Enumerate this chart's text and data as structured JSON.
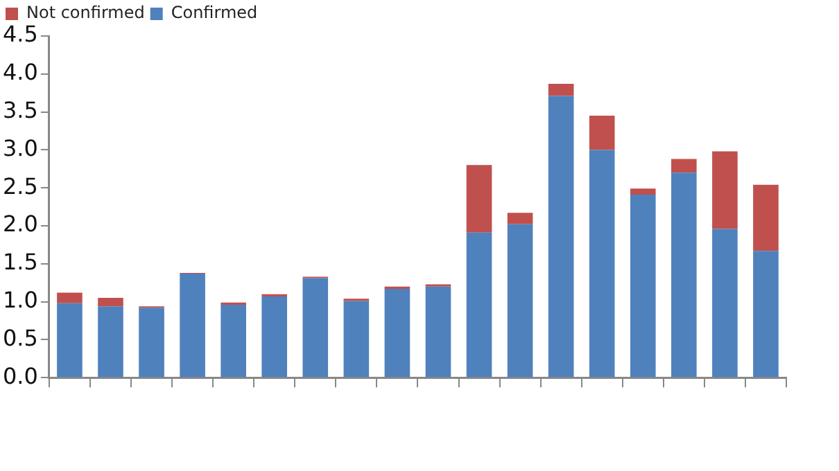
{
  "chart_data": {
    "type": "bar",
    "stacked": true,
    "categories": [
      null,
      null,
      null,
      null,
      null,
      null,
      null,
      null,
      null,
      null,
      null,
      null,
      null,
      null,
      null,
      null,
      null,
      null
    ],
    "series": [
      {
        "name": "Confirmed",
        "color": "#4f81bd",
        "values": [
          0.98,
          0.94,
          0.92,
          1.37,
          0.96,
          1.07,
          1.31,
          1.01,
          1.17,
          1.2,
          1.91,
          2.02,
          3.71,
          3.0,
          2.41,
          2.7,
          1.96,
          1.67
        ]
      },
      {
        "name": "Not confirmed",
        "color": "#c0504d",
        "values": [
          0.14,
          0.11,
          0.02,
          0.01,
          0.03,
          0.03,
          0.02,
          0.03,
          0.03,
          0.03,
          0.89,
          0.15,
          0.16,
          0.45,
          0.08,
          0.18,
          1.02,
          0.87
        ]
      }
    ],
    "ylim": [
      0,
      4.5
    ],
    "yticks": [
      {
        "value": 0,
        "label": "0.0"
      },
      0.5,
      {
        "value": 1,
        "label": "1.0"
      },
      1.5,
      {
        "value": 2,
        "label": "2.0"
      },
      2.5,
      {
        "value": 3,
        "label": "3.0"
      },
      3.5,
      {
        "value": 4,
        "label": "4.0"
      },
      4.5
    ],
    "grid": false,
    "legend": "top left"
  }
}
